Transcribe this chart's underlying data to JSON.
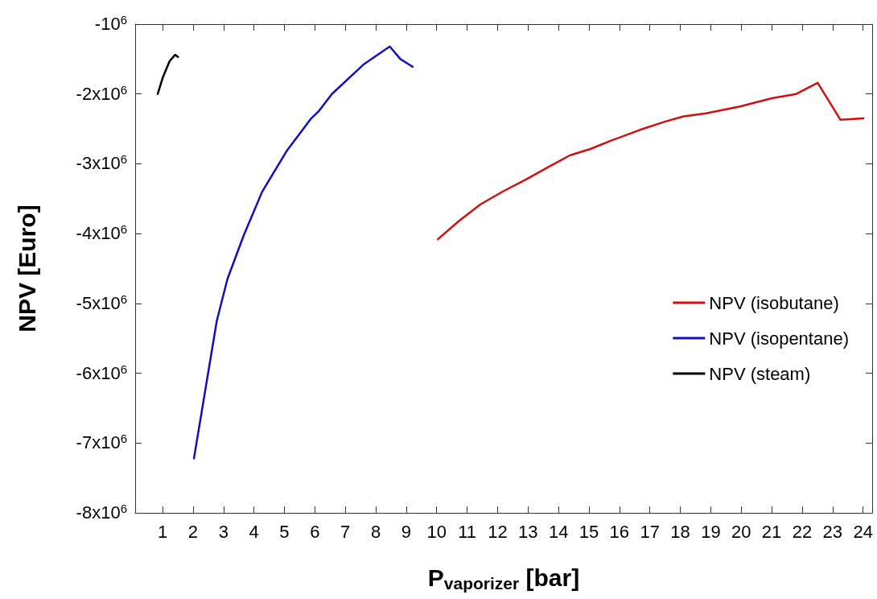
{
  "chart_data": {
    "type": "line",
    "xlabel": "P$_{vaporizer}$ [bar]",
    "ylabel": "NPV [Euro]",
    "xlim": [
      0.1,
      24.3
    ],
    "xticks": [
      1,
      2,
      3,
      4,
      5,
      6,
      7,
      8,
      9,
      10,
      11,
      12,
      13,
      14,
      15,
      16,
      17,
      18,
      19,
      20,
      21,
      22,
      23,
      24
    ],
    "ylim": [
      -8000000,
      -1000000
    ],
    "yticks": [
      {
        "value": -8000000,
        "label": "-8x10$^{6}$"
      },
      {
        "value": -7000000,
        "label": "-7x10$^{6}$"
      },
      {
        "value": -6000000,
        "label": "-6x10$^{6}$"
      },
      {
        "value": -5000000,
        "label": "-5x10$^{6}$"
      },
      {
        "value": -4000000,
        "label": "-4x10$^{6}$"
      },
      {
        "value": -3000000,
        "label": "-3x10$^{6}$"
      },
      {
        "value": -2000000,
        "label": "-2x10$^{6}$"
      },
      {
        "value": -1000000,
        "label": "-10$^{6}$"
      }
    ],
    "grid": false,
    "legend": "right",
    "marker": "none",
    "line_style": "solid",
    "series": [
      {
        "name": "NPV (isobutane)",
        "color": "#d01010",
        "x": [
          10.04,
          10.73,
          11.44,
          12.2,
          12.91,
          13.61,
          14.37,
          15.03,
          15.78,
          16.64,
          17.47,
          18.11,
          18.81,
          19.96,
          21.01,
          21.81,
          22.51,
          23.26,
          24.01
        ],
        "values": [
          -4080000,
          -3820000,
          -3580000,
          -3390000,
          -3230000,
          -3060000,
          -2880000,
          -2790000,
          -2660000,
          -2520000,
          -2400000,
          -2320000,
          -2280000,
          -2180000,
          -2060000,
          -2000000,
          -1840000,
          -2370000,
          -2350000
        ]
      },
      {
        "name": "NPV (isopentane)",
        "color": "#1010c0",
        "x": [
          2.03,
          2.78,
          3.13,
          3.66,
          4.27,
          5.07,
          5.86,
          6.12,
          6.56,
          7.62,
          8.46,
          8.81,
          9.21
        ],
        "values": [
          -7220000,
          -5250000,
          -4650000,
          -4030000,
          -3400000,
          -2820000,
          -2360000,
          -2250000,
          -2000000,
          -1570000,
          -1320000,
          -1500000,
          -1610000
        ]
      },
      {
        "name": "NPV (steam)",
        "color": "#000000",
        "x": [
          0.84,
          1.01,
          1.23,
          1.41,
          1.51
        ],
        "values": [
          -2000000,
          -1760000,
          -1530000,
          -1440000,
          -1470000
        ]
      }
    ]
  }
}
